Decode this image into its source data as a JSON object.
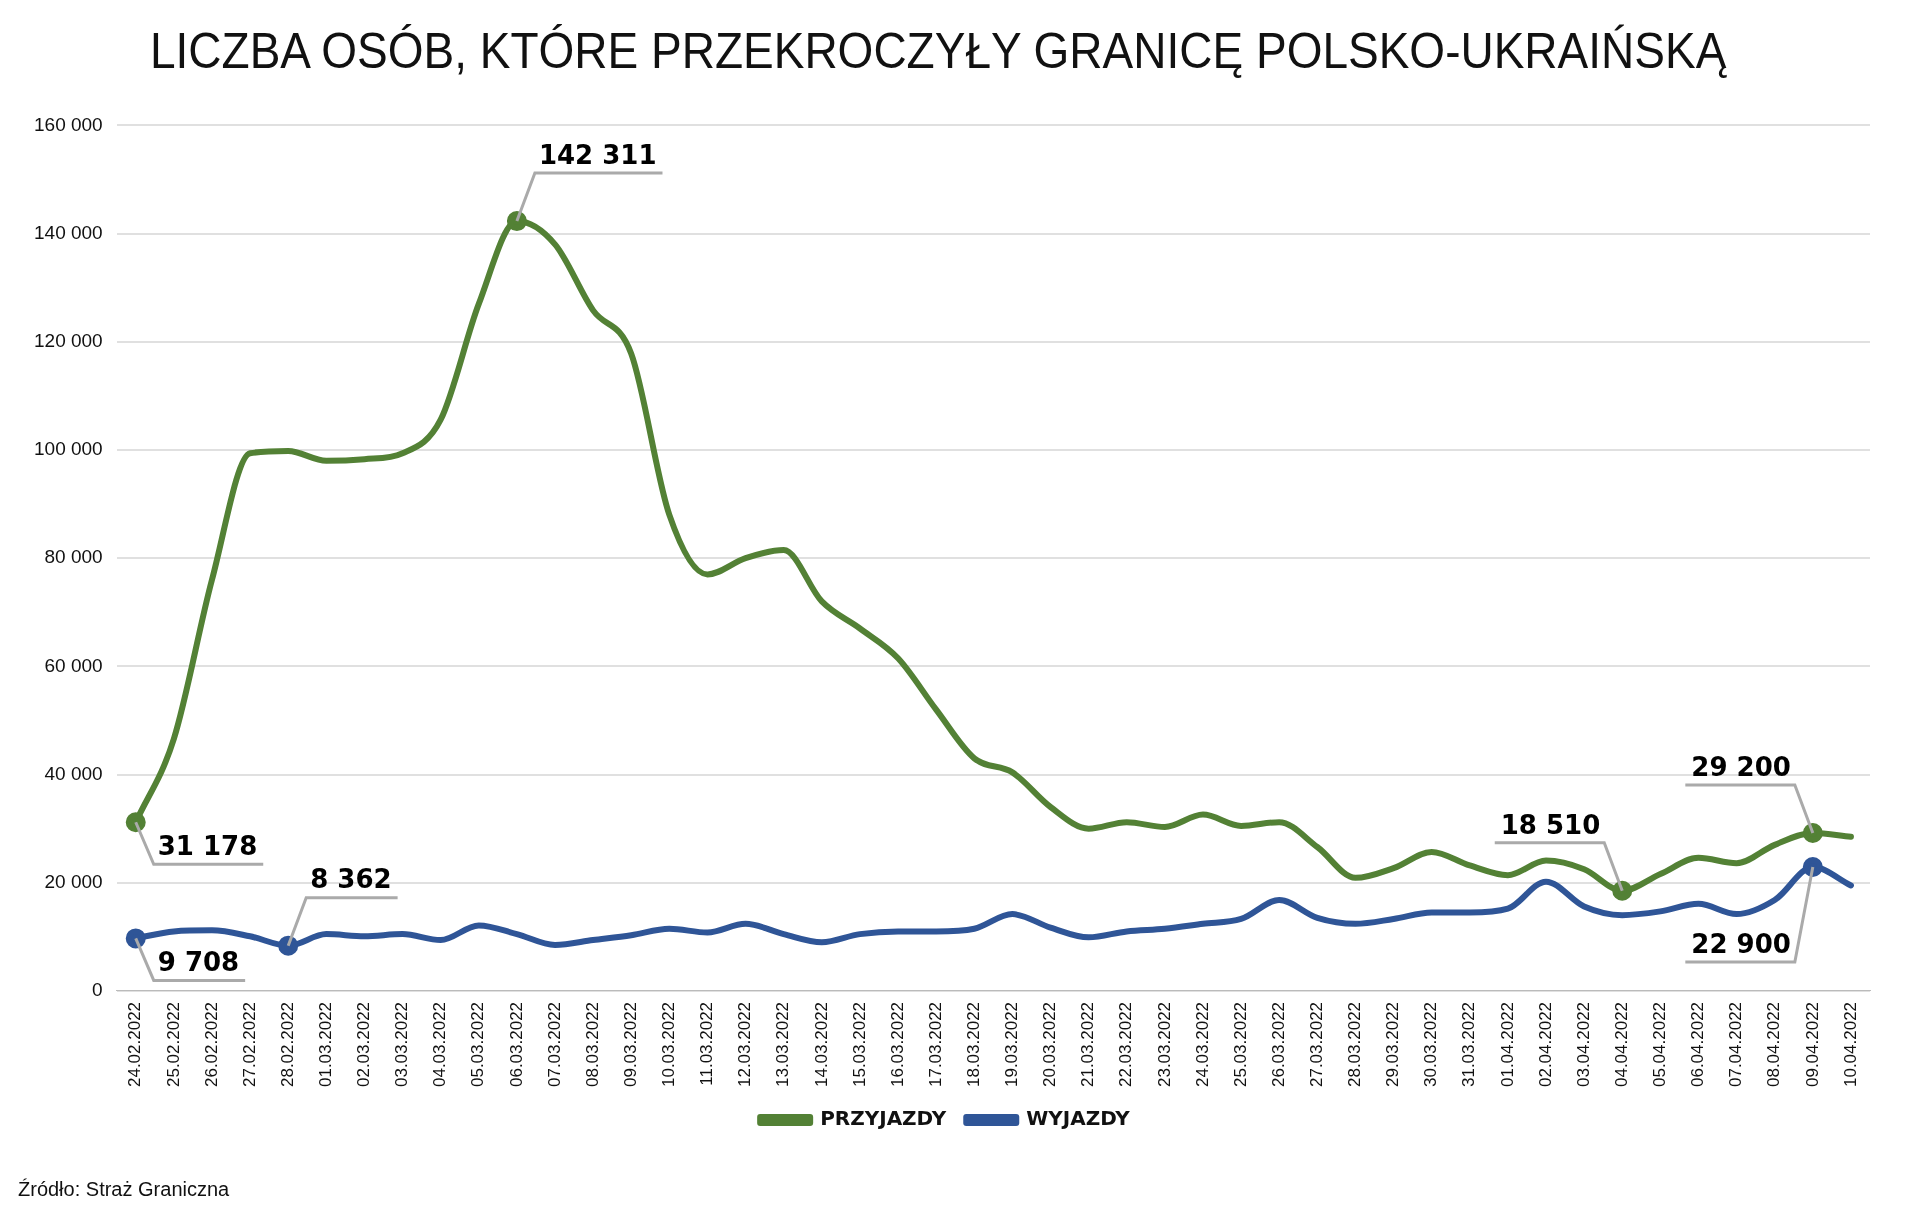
{
  "chart_data": {
    "type": "line",
    "title": "LICZBA OSÓB, KTÓRE PRZEKROCZYŁY GRANICĘ POLSKO-UKRAIŃSKĄ",
    "categories": [
      "24.02.2022",
      "25.02.2022",
      "26.02.2022",
      "27.02.2022",
      "28.02.2022",
      "01.03.2022",
      "02.03.2022",
      "03.03.2022",
      "04.03.2022",
      "05.03.2022",
      "06.03.2022",
      "07.03.2022",
      "08.03.2022",
      "09.03.2022",
      "10.03.2022",
      "11.03.2022",
      "12.03.2022",
      "13.03.2022",
      "14.03.2022",
      "15.03.2022",
      "16.03.2022",
      "17.03.2022",
      "18.03.2022",
      "19.03.2022",
      "20.03.2022",
      "21.03.2022",
      "22.03.2022",
      "23.03.2022",
      "24.03.2022",
      "25.03.2022",
      "26.03.2022",
      "27.03.2022",
      "28.03.2022",
      "29.03.2022",
      "30.03.2022",
      "31.03.2022",
      "01.04.2022",
      "02.04.2022",
      "03.04.2022",
      "04.04.2022",
      "05.04.2022",
      "06.04.2022",
      "07.04.2022",
      "08.04.2022",
      "09.04.2022",
      "10.04.2022"
    ],
    "series": [
      {
        "name": "PRZYJAZDY",
        "color": "#538135",
        "values": [
          31178,
          46600,
          76000,
          99400,
          99800,
          98000,
          98300,
          99400,
          105600,
          127000,
          142311,
          138000,
          125800,
          117800,
          88000,
          77000,
          80000,
          81500,
          72000,
          67000,
          61500,
          52000,
          43000,
          40400,
          34000,
          30000,
          31200,
          30300,
          32600,
          30500,
          31200,
          26600,
          20900,
          22700,
          25700,
          23200,
          21400,
          24100,
          22500,
          18510,
          21600,
          24600,
          23600,
          27000,
          29200,
          28500
        ],
        "value_labels": [
          "31 178",
          null,
          null,
          null,
          null,
          null,
          null,
          null,
          null,
          null,
          "142 311",
          null,
          null,
          null,
          null,
          null,
          null,
          null,
          null,
          null,
          null,
          null,
          null,
          null,
          null,
          null,
          null,
          null,
          null,
          null,
          null,
          null,
          null,
          null,
          null,
          null,
          null,
          null,
          null,
          "18 510",
          null,
          null,
          null,
          null,
          "29 200",
          null
        ]
      },
      {
        "name": "WYJAZDY",
        "color": "#2f5597",
        "values": [
          9708,
          11000,
          11200,
          10100,
          8362,
          10500,
          10100,
          10500,
          9400,
          12100,
          10500,
          8500,
          9400,
          10300,
          11500,
          10800,
          12400,
          10500,
          9000,
          10500,
          11000,
          11000,
          11500,
          14200,
          11700,
          9900,
          11000,
          11500,
          12400,
          13300,
          16800,
          13500,
          12400,
          13300,
          14500,
          14500,
          15200,
          20200,
          15600,
          14000,
          14700,
          16100,
          14200,
          16800,
          22900,
          19500
        ],
        "value_labels": [
          "9 708",
          null,
          null,
          null,
          "8 362",
          null,
          null,
          null,
          null,
          null,
          null,
          null,
          null,
          null,
          null,
          null,
          null,
          null,
          null,
          null,
          null,
          null,
          null,
          null,
          null,
          null,
          null,
          null,
          null,
          null,
          null,
          null,
          null,
          null,
          null,
          null,
          null,
          null,
          null,
          null,
          null,
          null,
          null,
          null,
          "22 900",
          null
        ]
      }
    ],
    "ylim": [
      0,
      160000
    ],
    "yticks": [
      {
        "value": 0,
        "label": "0"
      },
      {
        "value": 20000,
        "label": "20 000"
      },
      {
        "value": 40000,
        "label": "40 000"
      },
      {
        "value": 60000,
        "label": "60 000"
      },
      {
        "value": 80000,
        "label": "80 000"
      },
      {
        "value": 100000,
        "label": "100 000"
      },
      {
        "value": 120000,
        "label": "120 000"
      },
      {
        "value": 140000,
        "label": "140 000"
      },
      {
        "value": 160000,
        "label": "160 000"
      }
    ],
    "grid": "y",
    "legend": "bottom",
    "annotations": [
      "Źródło: Straż Graniczna"
    ]
  }
}
